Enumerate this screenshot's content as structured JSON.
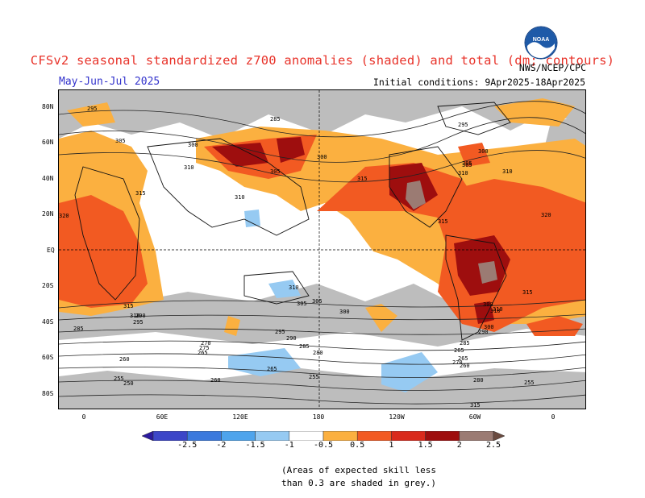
{
  "header": {
    "title": "CFSv2 seasonal standardized z700 anomalies (shaded) and total (dm; contours)",
    "period": "May-Jun-Jul 2025",
    "initial_conditions": "Initial conditions: 9Apr2025-18Apr2025",
    "agency": "NWS/NCEP/CPC",
    "logo_icon": "noaa-logo-icon",
    "logo_text": "NOAA"
  },
  "map": {
    "lat_labels": [
      "80N",
      "60N",
      "40N",
      "20N",
      "EQ",
      "20S",
      "40S",
      "60S",
      "80S"
    ],
    "lon_labels": [
      "0",
      "60E",
      "120E",
      "180",
      "120W",
      "60W",
      "0"
    ],
    "contour_labels": [
      "295",
      "285",
      "295",
      "305",
      "300",
      "300",
      "305",
      "310",
      "310",
      "315",
      "305",
      "310",
      "300",
      "305",
      "310",
      "315",
      "320",
      "320",
      "315",
      "310",
      "315",
      "310",
      "300",
      "305",
      "290",
      "295",
      "285",
      "290",
      "270",
      "275",
      "265",
      "260",
      "255",
      "265",
      "260",
      "255",
      "250",
      "280",
      "285",
      "295",
      "305",
      "300",
      "310",
      "315",
      "265",
      "260",
      "265",
      "270",
      "285",
      "280",
      "255",
      "300",
      "310",
      "315",
      "290"
    ],
    "colors": {
      "grey": "#bdbdbd",
      "light_orange": "#fbb040",
      "orange_red": "#f25a22",
      "red": "#d92a1c",
      "dark_red": "#9e0e0e",
      "brown": "#9b7b73",
      "light_blue": "#96caf2",
      "blue": "#3a8ee8"
    }
  },
  "colorbar": {
    "labels": [
      "-2.5",
      "-2",
      "-1.5",
      "-1",
      "-0.5",
      "0.5",
      "1",
      "1.5",
      "2",
      "2.5"
    ],
    "colors": [
      "#2b1a9e",
      "#3c46c8",
      "#3b79dd",
      "#4ea4ec",
      "#96caf2",
      "#ffffff",
      "#fbb040",
      "#f25a22",
      "#d92a1c",
      "#9e0e0e",
      "#9b7b73",
      "#6a4a3f"
    ]
  },
  "note": {
    "line1": "(Areas of expected skill less",
    "line2": "than 0.3 are shaded in grey.)"
  }
}
